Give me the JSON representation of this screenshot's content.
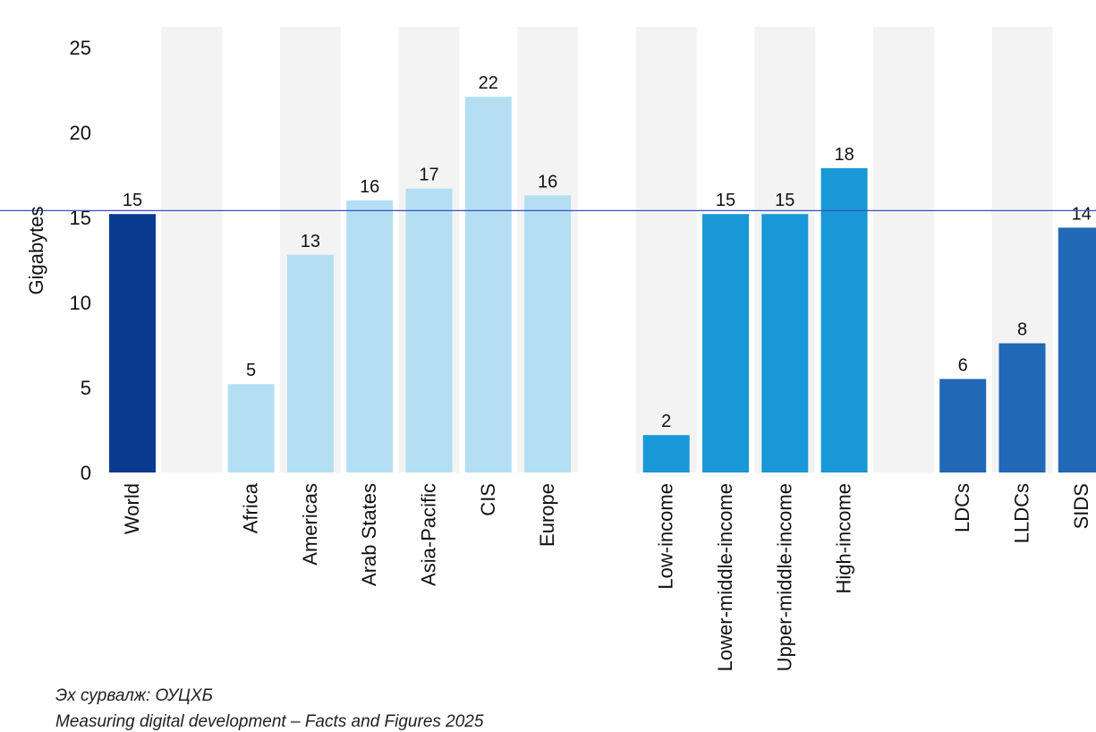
{
  "chart_data": {
    "type": "bar",
    "ylabel": "Gigabytes",
    "ylim": [
      0,
      25
    ],
    "yticks": [
      0,
      5,
      10,
      15,
      20,
      25
    ],
    "reference_line": 15.4,
    "slots": [
      "World",
      "",
      "Africa",
      "Americas",
      "Arab States",
      "Asia-Pacific",
      "CIS",
      "Europe",
      "",
      "Low-income",
      "Lower-middle-income",
      "Upper-middle-income",
      "High-income",
      "",
      "LDCs",
      "LLDCs",
      "SIDS"
    ],
    "categories": [
      "World",
      "Africa",
      "Americas",
      "Arab States",
      "Asia-Pacific",
      "CIS",
      "Europe",
      "Low-income",
      "Lower-middle-income",
      "Upper-middle-income",
      "High-income",
      "LDCs",
      "LLDCs",
      "SIDS"
    ],
    "values": [
      15.2,
      5.2,
      12.8,
      16.0,
      16.7,
      22.1,
      16.3,
      2.2,
      15.2,
      15.2,
      17.9,
      5.5,
      7.6,
      14.4
    ],
    "value_labels": [
      "15",
      "5",
      "13",
      "16",
      "17",
      "22",
      "16",
      "2",
      "15",
      "15",
      "18",
      "6",
      "8",
      "14"
    ],
    "groups": [
      "world",
      "region",
      "region",
      "region",
      "region",
      "region",
      "region",
      "income",
      "income",
      "income",
      "income",
      "special",
      "special",
      "special"
    ],
    "colors": {
      "world": "#0a3b8f",
      "region": "#b4dff3",
      "income": "#1898d6",
      "special": "#2168b6",
      "stripe": "#f3f3f3",
      "reference_line": "#3a4fc9"
    },
    "grid": false,
    "legend": "none"
  },
  "source": {
    "line1": "Эх сурвалж: ОУЦХБ",
    "line2": "Measuring digital development – Facts and Figures 2025"
  }
}
